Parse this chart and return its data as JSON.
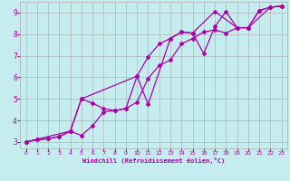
{
  "xlabel": "Windchill (Refroidissement éolien,°C)",
  "bg_color": "#c5ecee",
  "grid_color": "#aaaaaa",
  "line_color": "#aa00aa",
  "xlim": [
    -0.5,
    23.5
  ],
  "ylim": [
    2.7,
    9.5
  ],
  "xticks": [
    0,
    1,
    2,
    3,
    4,
    5,
    6,
    7,
    8,
    9,
    10,
    11,
    12,
    13,
    14,
    15,
    16,
    17,
    18,
    19,
    20,
    21,
    22,
    23
  ],
  "yticks": [
    3,
    4,
    5,
    6,
    7,
    8,
    9
  ],
  "series1_x": [
    0,
    1,
    2,
    3,
    4,
    5,
    6,
    7,
    8,
    9,
    10,
    11,
    12,
    13,
    14,
    15,
    16,
    17,
    18,
    19,
    20,
    21,
    22,
    23
  ],
  "series1_y": [
    3.0,
    3.1,
    3.15,
    3.25,
    3.5,
    5.0,
    4.8,
    4.55,
    4.45,
    4.55,
    6.05,
    6.95,
    7.55,
    7.8,
    8.1,
    8.05,
    7.1,
    8.35,
    9.05,
    8.3,
    8.3,
    9.1,
    9.25,
    9.3
  ],
  "series2_x": [
    0,
    1,
    2,
    3,
    4,
    5,
    6,
    7,
    8,
    9,
    10,
    11,
    12,
    13,
    14,
    15,
    16,
    17,
    18,
    19,
    20,
    21,
    22,
    23
  ],
  "series2_y": [
    3.0,
    3.1,
    3.15,
    3.25,
    3.5,
    3.3,
    3.75,
    4.4,
    4.45,
    4.55,
    4.85,
    5.95,
    6.55,
    6.8,
    7.55,
    7.8,
    8.1,
    8.2,
    8.05,
    8.3,
    8.3,
    9.1,
    9.25,
    9.3
  ],
  "series3_x": [
    0,
    4,
    5,
    10,
    11,
    13,
    14,
    15,
    17,
    19,
    20,
    22,
    23
  ],
  "series3_y": [
    3.0,
    3.5,
    5.0,
    6.05,
    4.75,
    7.8,
    8.1,
    8.05,
    9.05,
    8.3,
    8.3,
    9.25,
    9.3
  ]
}
